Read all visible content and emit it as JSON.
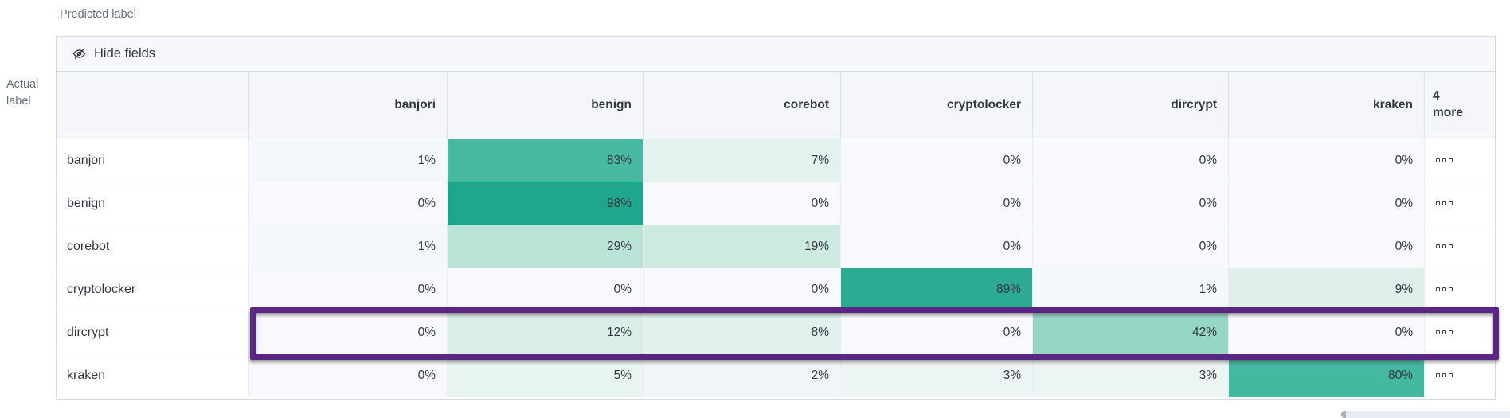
{
  "axes": {
    "predicted": "Predicted label",
    "actual_line1": "Actual",
    "actual_line2": "label"
  },
  "toolbar": {
    "hide_fields_label": "Hide fields",
    "hide_fields_icon": "eye-slash-icon"
  },
  "matrix": {
    "columns": [
      "banjori",
      "benign",
      "corebot",
      "cryptolocker",
      "dircrypt",
      "kraken"
    ],
    "more_header": {
      "count": "4",
      "word": "more"
    },
    "more_cell_icon": "boxes-horizontal-icon",
    "rows": [
      {
        "label": "banjori",
        "cells": [
          {
            "v": "1%",
            "bg": "#f4f8fa"
          },
          {
            "v": "83%",
            "bg": "#47b9a2"
          },
          {
            "v": "7%",
            "bg": "#e2f2ec"
          },
          {
            "v": "0%",
            "bg": "#f7f9fc"
          },
          {
            "v": "0%",
            "bg": "#f7f9fc"
          },
          {
            "v": "0%",
            "bg": "#f7f9fc"
          }
        ]
      },
      {
        "label": "benign",
        "cells": [
          {
            "v": "0%",
            "bg": "#f7f9fc"
          },
          {
            "v": "98%",
            "bg": "#1fa78b"
          },
          {
            "v": "0%",
            "bg": "#f7f9fc"
          },
          {
            "v": "0%",
            "bg": "#f7f9fc"
          },
          {
            "v": "0%",
            "bg": "#f7f9fc"
          },
          {
            "v": "0%",
            "bg": "#f7f9fc"
          }
        ]
      },
      {
        "label": "corebot",
        "cells": [
          {
            "v": "1%",
            "bg": "#f4f8fa"
          },
          {
            "v": "29%",
            "bg": "#b9e3d6"
          },
          {
            "v": "19%",
            "bg": "#cdeae0"
          },
          {
            "v": "0%",
            "bg": "#f7f9fc"
          },
          {
            "v": "0%",
            "bg": "#f7f9fc"
          },
          {
            "v": "0%",
            "bg": "#f7f9fc"
          }
        ]
      },
      {
        "label": "cryptolocker",
        "cells": [
          {
            "v": "0%",
            "bg": "#f7f9fc"
          },
          {
            "v": "0%",
            "bg": "#f7f9fc"
          },
          {
            "v": "0%",
            "bg": "#f7f9fc"
          },
          {
            "v": "89%",
            "bg": "#2cab92"
          },
          {
            "v": "1%",
            "bg": "#f4f8fa"
          },
          {
            "v": "9%",
            "bg": "#dff0eb"
          }
        ]
      },
      {
        "label": "dircrypt",
        "cells": [
          {
            "v": "0%",
            "bg": "#f7f9fc"
          },
          {
            "v": "12%",
            "bg": "#d9eee7"
          },
          {
            "v": "8%",
            "bg": "#e1f1ec"
          },
          {
            "v": "0%",
            "bg": "#f7f9fc"
          },
          {
            "v": "42%",
            "bg": "#95d6c4"
          },
          {
            "v": "0%",
            "bg": "#f7f9fc"
          }
        ]
      },
      {
        "label": "kraken",
        "cells": [
          {
            "v": "0%",
            "bg": "#f7f9fc"
          },
          {
            "v": "5%",
            "bg": "#e7f4ef"
          },
          {
            "v": "2%",
            "bg": "#f0f6f7"
          },
          {
            "v": "3%",
            "bg": "#ecf5f3"
          },
          {
            "v": "3%",
            "bg": "#ecf5f3"
          },
          {
            "v": "80%",
            "bg": "#44b8a1"
          }
        ]
      }
    ]
  },
  "highlight": {
    "row": "dircrypt",
    "color": "#5a2583"
  },
  "colors": {
    "heat_max": "#1fa78b",
    "heat_min": "#f7f9fc",
    "border": "#d3dae6",
    "header_bg": "#f4f6fa"
  }
}
